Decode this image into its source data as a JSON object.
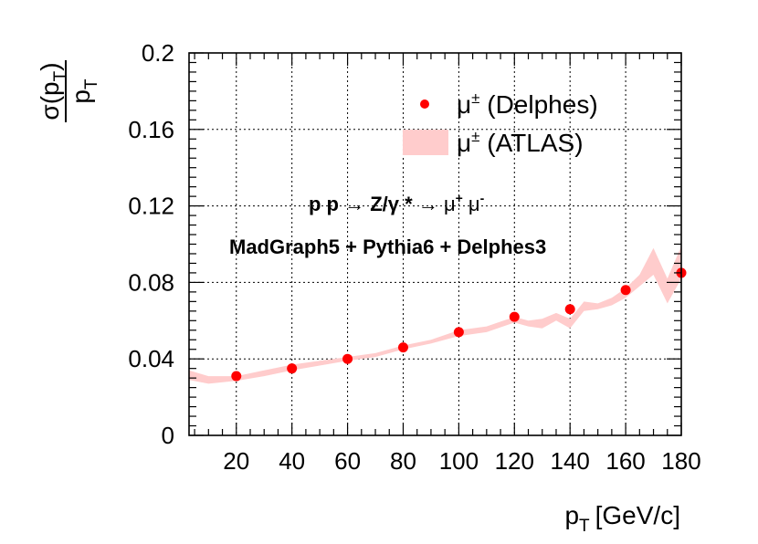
{
  "chart_data": {
    "type": "scatter",
    "title": "",
    "xlabel": "p_T [GeV/c]",
    "xlabel_main": "p",
    "xlabel_sub": "T",
    "xlabel_unit": "[GeV/c]",
    "ylabel_numerator": "σ(p_T)",
    "ylabel_denominator": "p_T",
    "ylabel_num_main": "σ(p",
    "ylabel_num_sub": "T",
    "ylabel_num_close": ")",
    "ylabel_den_main": "p",
    "ylabel_den_sub": "T",
    "xlim": [
      3,
      180
    ],
    "ylim": [
      0,
      0.2
    ],
    "grid": true,
    "x_ticks": [
      20,
      40,
      60,
      80,
      100,
      120,
      140,
      160,
      180
    ],
    "x_tick_labels": [
      "20",
      "40",
      "60",
      "80",
      "100",
      "120",
      "140",
      "160",
      "180"
    ],
    "y_ticks": [
      0,
      0.04,
      0.08,
      0.12,
      0.16,
      0.2
    ],
    "y_tick_labels": [
      "0",
      "0.04",
      "0.08",
      "0.12",
      "0.16",
      "0.2"
    ],
    "series": [
      {
        "name": "μ± (Delphes)",
        "kind": "points",
        "color": "#ff0000",
        "x": [
          20,
          40,
          60,
          80,
          100,
          120,
          140,
          160,
          180
        ],
        "y": [
          0.031,
          0.035,
          0.04,
          0.046,
          0.054,
          0.062,
          0.066,
          0.076,
          0.085
        ]
      },
      {
        "name": "μ± (ATLAS)",
        "kind": "band",
        "color": "#ffcccc",
        "x": [
          3,
          10,
          20,
          30,
          40,
          50,
          60,
          70,
          80,
          90,
          100,
          110,
          120,
          125,
          130,
          135,
          140,
          145,
          150,
          155,
          160,
          165,
          170,
          175,
          180
        ],
        "low": [
          0.029,
          0.027,
          0.0285,
          0.031,
          0.034,
          0.0365,
          0.039,
          0.041,
          0.045,
          0.048,
          0.052,
          0.054,
          0.059,
          0.057,
          0.056,
          0.06,
          0.056,
          0.065,
          0.066,
          0.068,
          0.072,
          0.078,
          0.084,
          0.069,
          0.082
        ],
        "high": [
          0.034,
          0.031,
          0.031,
          0.034,
          0.037,
          0.039,
          0.041,
          0.043,
          0.047,
          0.05,
          0.055,
          0.057,
          0.062,
          0.06,
          0.061,
          0.064,
          0.061,
          0.07,
          0.069,
          0.072,
          0.077,
          0.084,
          0.098,
          0.082,
          0.099
        ]
      }
    ],
    "legend": {
      "position": "top-right",
      "entries": [
        {
          "main": "μ",
          "sup": "±",
          "rest": " (Delphes)"
        },
        {
          "main": "μ",
          "sup": "±",
          "rest": " (ATLAS)"
        }
      ]
    },
    "annotations": {
      "process_pp": "p p",
      "process_arrow1": " → ",
      "process_z": "Z/γ *",
      "process_arrow2": " → ",
      "process_mu": "μ",
      "process_plus": "+",
      "process_mu2": " μ",
      "process_minus": "-",
      "generator": "MadGraph5 + Pythia6 + Delphes3"
    }
  }
}
